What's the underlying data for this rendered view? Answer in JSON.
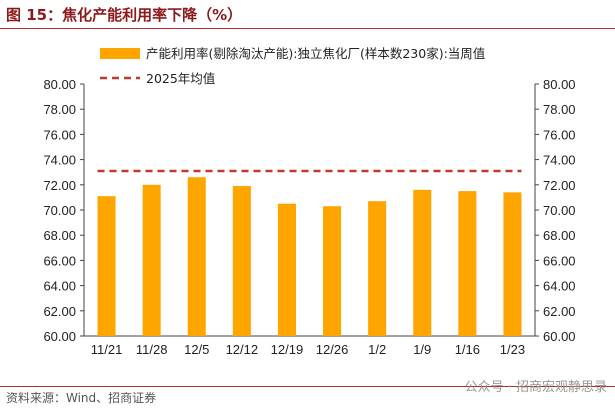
{
  "header": {
    "figure_title": "图 15：焦化产能利用率下降（%）"
  },
  "footer": {
    "source": "资料来源：Wind、招商证券",
    "watermark": "公众号 · 招商宏观静思录"
  },
  "colors": {
    "bar": "#FFA500",
    "avg_line": "#C0392B",
    "accent": "#8B1A1A"
  },
  "chart_data": {
    "type": "bar",
    "categories": [
      "11/21",
      "11/28",
      "12/5",
      "12/12",
      "12/19",
      "12/26",
      "1/2",
      "1/9",
      "1/16",
      "1/23"
    ],
    "series": [
      {
        "name": "产能利用率(剔除淘汰产能):独立焦化厂(样本数230家):当周值",
        "values": [
          71.1,
          72.0,
          72.6,
          71.9,
          70.5,
          70.3,
          70.7,
          71.6,
          71.5,
          71.4
        ]
      }
    ],
    "reference_line": {
      "name": "2025年均值",
      "value": 73.1
    },
    "y_ticks": [
      "80.00",
      "78.00",
      "76.00",
      "74.00",
      "72.00",
      "70.00",
      "68.00",
      "66.00",
      "64.00",
      "62.00",
      "60.00"
    ],
    "ylim": [
      60,
      80
    ],
    "y_right_mirror": true,
    "legend_position": "top",
    "grid": false
  }
}
